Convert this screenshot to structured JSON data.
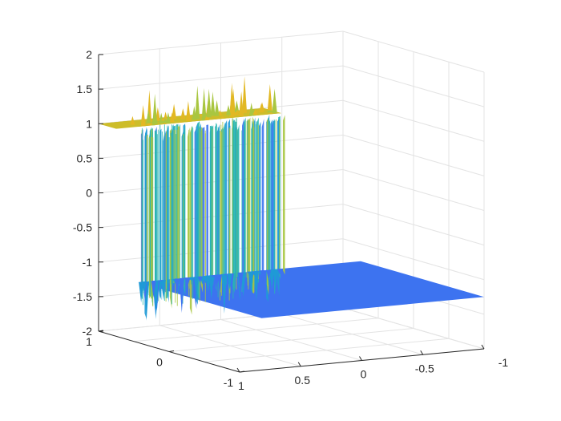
{
  "chart_data": {
    "type": "surface",
    "title": "",
    "xlabel": "",
    "ylabel": "",
    "zlabel": "",
    "xlim": [
      -1,
      1
    ],
    "ylim": [
      -1,
      1
    ],
    "zlim": [
      -2,
      2
    ],
    "grid": true,
    "box": true,
    "colormap": "parula",
    "x_ticks": [
      "1",
      "0.5",
      "0",
      "-0.5",
      "-1"
    ],
    "y_ticks": [
      "1",
      "0",
      "-1"
    ],
    "z_ticks": [
      "2",
      "1.5",
      "1",
      "0.5",
      "0",
      "-0.5",
      "-1",
      "-1.5",
      "-2"
    ],
    "upper_plateau": {
      "z": 1
    },
    "lower_plateau": {
      "z": -1.25
    },
    "noise_peaks": {
      "max_z": 1.6,
      "min_z": -2
    },
    "colors": {
      "high": "#cdbd2a",
      "mid_high": "#a9c640",
      "mid": "#28b6b0",
      "mid_low": "#1f9ad6",
      "low": "#3d73f0",
      "axis": "#262626",
      "grid": "#e3e3e3"
    }
  }
}
